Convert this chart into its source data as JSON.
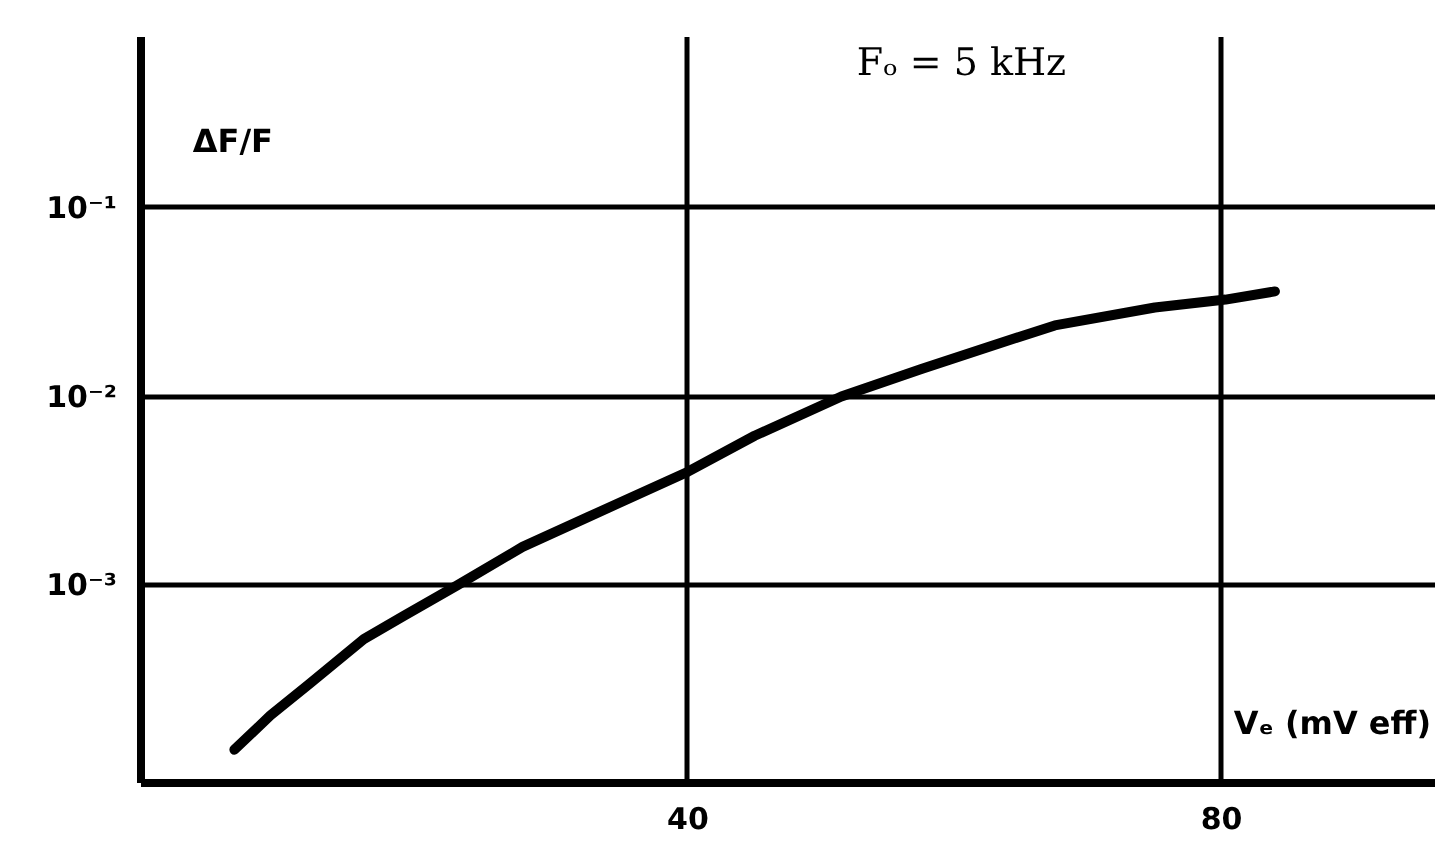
{
  "chart_data": {
    "type": "line",
    "title": "Fₒ = 5 kHz",
    "xlabel": "Vₑ (mV eff)",
    "ylabel": "ΔF/F",
    "x": [
      6,
      8.7,
      11.6,
      15.7,
      18.7,
      22.7,
      27.6,
      32.5,
      40,
      45,
      51.5,
      57.5,
      62.4,
      67.5,
      75,
      80.3,
      84
    ],
    "series": [
      {
        "color": "#000000",
        "values": [
          0.000135,
          0.000205,
          0.0003,
          0.00052,
          0.00069,
          0.001,
          0.0016,
          0.0023,
          0.004,
          0.0062,
          0.01,
          0.014,
          0.0182,
          0.0238,
          0.0296,
          0.0326,
          0.036
        ]
      }
    ],
    "log": "y",
    "grid": true,
    "xlim": [
      -1,
      96
    ],
    "ylim": [
      9e-05,
      0.8
    ],
    "xticks": [
      40,
      80
    ],
    "yticks": [
      {
        "value": 0.1,
        "label": "10⁻¹"
      },
      {
        "value": 0.01,
        "label": "10⁻²"
      },
      {
        "value": 0.001,
        "label": "10⁻³"
      }
    ]
  }
}
